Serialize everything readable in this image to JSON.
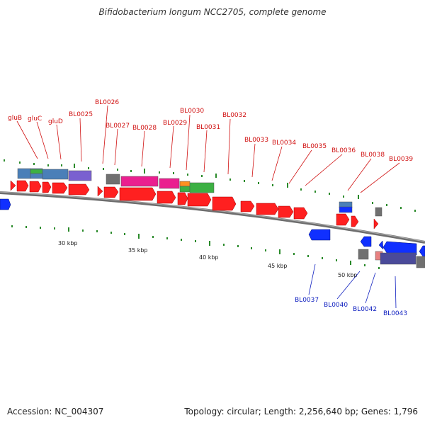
{
  "title": "Bifidobacterium longum NCC2705, complete genome",
  "footer": {
    "accession": "Accession: NC_004307",
    "stats": "Topology: circular; Length: 2,256,640 bp; Genes: 1,796"
  },
  "colors": {
    "backbone": "#808080",
    "forward_cds": "#ff2020",
    "reverse_cds": "#1030ff",
    "tick": "#1a8a1a",
    "label_forward": "#d01010",
    "label_reverse": "#1020c0"
  },
  "scale_labels": [
    "30 kbp",
    "35 kbp",
    "40 kbp",
    "45 kbp",
    "50 kbp"
  ],
  "top_labels": [
    "gluB",
    "gluC",
    "gluD",
    "BL0025",
    "BL0026",
    "BL0027",
    "BL0028",
    "BL0029",
    "BL0030",
    "BL0031",
    "BL0032",
    "BL0033",
    "BL0034",
    "BL0035",
    "BL0036",
    "BL0038",
    "BL0039"
  ],
  "bottom_labels": [
    "BL0037",
    "BL0040",
    "BL0042",
    "BL0043"
  ]
}
